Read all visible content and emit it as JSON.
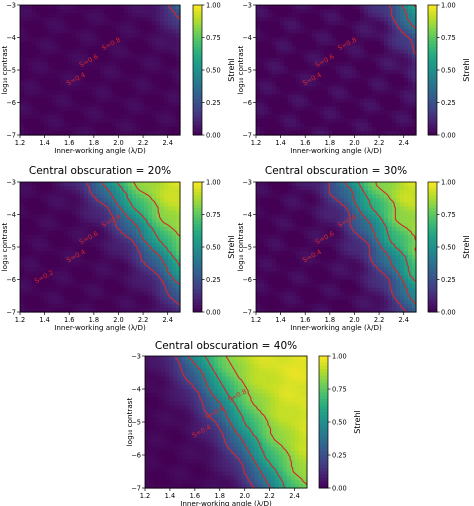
{
  "chart_data": [
    {
      "type": "heatmap",
      "title": "",
      "xlabel": "Inner-working angle (λ/D)",
      "ylabel": "log₁₀ contrast",
      "xlim": [
        1.2,
        2.5
      ],
      "ylim": [
        -7,
        -3
      ],
      "x_ticks": [
        "1.2",
        "1.4",
        "1.6",
        "1.8",
        "2.0",
        "2.2",
        "2.4"
      ],
      "y_ticks": [
        "−3",
        "−4",
        "−5",
        "−6",
        "−7"
      ],
      "colorbar_label": "Strehl",
      "colorbar_range": [
        0,
        1
      ],
      "colorbar_ticks": [
        "0.00",
        "0.25",
        "0.50",
        "0.75",
        "1.00"
      ],
      "colormap": "viridis",
      "contour_levels": [
        0.2,
        0.4,
        0.6,
        0.8
      ],
      "contour_labels": [
        "S=0.8",
        "S=0.6",
        "S=0.4"
      ],
      "contour_color": "#d62728"
    },
    {
      "type": "heatmap",
      "title": "",
      "xlabel": "Inner-working angle (λ/D)",
      "ylabel": "log₁₀ contrast",
      "xlim": [
        1.2,
        2.5
      ],
      "ylim": [
        -7,
        -3
      ],
      "x_ticks": [
        "1.2",
        "1.4",
        "1.6",
        "1.8",
        "2.0",
        "2.2",
        "2.4"
      ],
      "y_ticks": [
        "−3",
        "−4",
        "−5",
        "−6",
        "−7"
      ],
      "colorbar_label": "Strehl",
      "colorbar_range": [
        0,
        1
      ],
      "colorbar_ticks": [
        "0.00",
        "0.25",
        "0.50",
        "0.75",
        "1.00"
      ],
      "colormap": "viridis",
      "contour_levels": [
        0.2,
        0.4,
        0.6,
        0.8
      ],
      "contour_labels": [
        "S=0.8",
        "S=0.6",
        "S=0.4"
      ],
      "contour_color": "#d62728"
    },
    {
      "type": "heatmap",
      "title": "Central obscuration = 20%",
      "xlabel": "Inner-working angle (λ/D)",
      "ylabel": "log₁₀ contrast",
      "xlim": [
        1.2,
        2.5
      ],
      "ylim": [
        -7,
        -3
      ],
      "x_ticks": [
        "1.2",
        "1.4",
        "1.6",
        "1.8",
        "2.0",
        "2.2",
        "2.4"
      ],
      "y_ticks": [
        "−3",
        "−4",
        "−5",
        "−6",
        "−7"
      ],
      "colorbar_label": "Strehl",
      "colorbar_range": [
        0,
        1
      ],
      "colorbar_ticks": [
        "0.00",
        "0.25",
        "0.50",
        "0.75",
        "1.00"
      ],
      "colormap": "viridis",
      "contour_levels": [
        0.2,
        0.4,
        0.6,
        0.8
      ],
      "contour_labels": [
        "S=0.8",
        "S=0.6",
        "S=0.4",
        "S=0.2"
      ],
      "contour_color": "#d62728"
    },
    {
      "type": "heatmap",
      "title": "Central obscuration = 30%",
      "xlabel": "Inner-working angle (λ/D)",
      "ylabel": "log₁₀ contrast",
      "xlim": [
        1.2,
        2.5
      ],
      "ylim": [
        -7,
        -3
      ],
      "x_ticks": [
        "1.2",
        "1.4",
        "1.6",
        "1.8",
        "2.0",
        "2.2",
        "2.4"
      ],
      "y_ticks": [
        "−3",
        "−4",
        "−5",
        "−6",
        "−7"
      ],
      "colorbar_label": "Strehl",
      "colorbar_range": [
        0,
        1
      ],
      "colorbar_ticks": [
        "0.00",
        "0.25",
        "0.50",
        "0.75",
        "1.00"
      ],
      "colormap": "viridis",
      "contour_levels": [
        0.2,
        0.4,
        0.6,
        0.8
      ],
      "contour_labels": [
        "S=0.8",
        "S=0.6",
        "S=0.4"
      ],
      "contour_color": "#d62728"
    },
    {
      "type": "heatmap",
      "title": "Central obscuration = 40%",
      "xlabel": "Inner-working angle (λ/D)",
      "ylabel": "log₁₀ contrast",
      "xlim": [
        1.2,
        2.5
      ],
      "ylim": [
        -7,
        -3
      ],
      "x_ticks": [
        "1.2",
        "1.4",
        "1.6",
        "1.8",
        "2.0",
        "2.2",
        "2.4"
      ],
      "y_ticks": [
        "−3",
        "−4",
        "−5",
        "−6",
        "−7"
      ],
      "colorbar_label": "Strehl",
      "colorbar_range": [
        0,
        1
      ],
      "colorbar_ticks": [
        "0.00",
        "0.25",
        "0.50",
        "0.75",
        "1.00"
      ],
      "colormap": "viridis",
      "contour_levels": [
        0.2,
        0.4,
        0.6,
        0.8
      ],
      "contour_labels": [
        "S=0.8",
        "S=0.6",
        "S=0.4"
      ],
      "contour_color": "#d62728"
    }
  ]
}
